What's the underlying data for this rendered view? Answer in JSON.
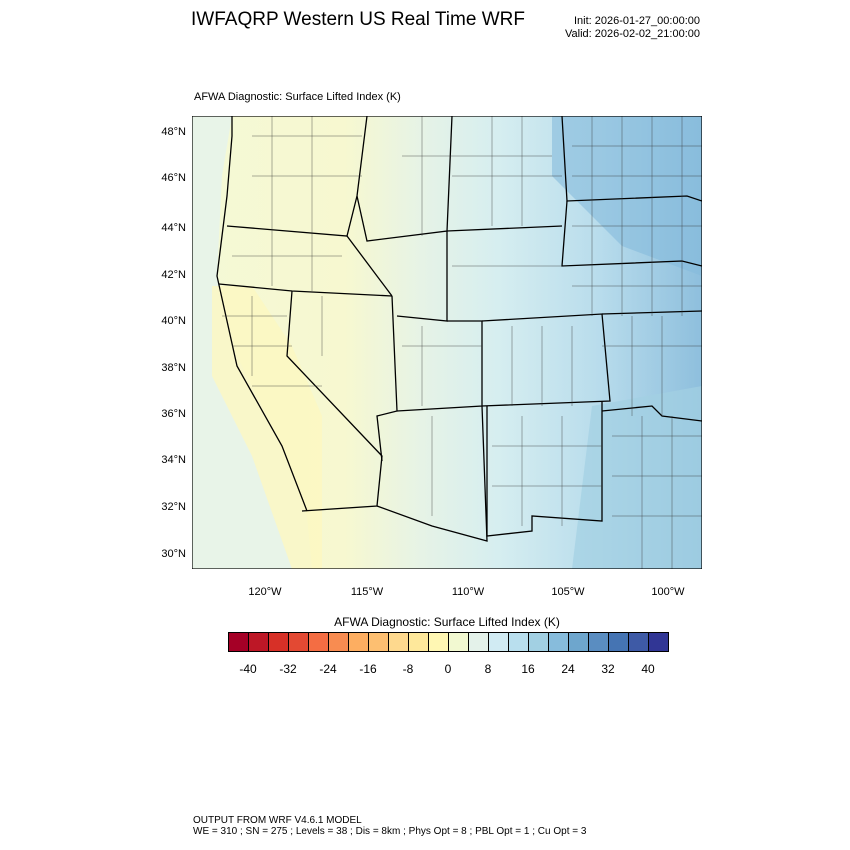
{
  "header": {
    "title": "IWFAQRP Western US Real Time WRF",
    "init": "Init: 2026-01-27_00:00:00",
    "valid": "Valid: 2026-02-02_21:00:00"
  },
  "map": {
    "subtitle": "AFWA Diagnostic: Surface Lifted Index   (K)",
    "lat_labels": [
      "48°N",
      "46°N",
      "44°N",
      "42°N",
      "40°N",
      "38°N",
      "36°N",
      "34°N",
      "32°N",
      "30°N"
    ],
    "lon_labels": [
      "120°W",
      "115°W",
      "110°W",
      "105°W",
      "100°W"
    ],
    "field_summary": {
      "west": "0 to 4 (pale yellow)",
      "central": "4 to 12 (pale green-blue)",
      "east": "12 to 28 (light to medium blue)"
    }
  },
  "colorbar": {
    "title": "AFWA Diagnostic: Surface Lifted Index  (K)",
    "labels": [
      "-40",
      "-32",
      "-24",
      "-16",
      "-8",
      "0",
      "8",
      "16",
      "24",
      "32",
      "40"
    ],
    "levels": [
      -40,
      -36,
      -32,
      -28,
      -24,
      -20,
      -16,
      -12,
      -8,
      -4,
      0,
      4,
      8,
      12,
      16,
      20,
      24,
      28,
      32,
      36,
      40
    ],
    "colors": [
      "#a50026",
      "#bd1726",
      "#d73027",
      "#e34933",
      "#f46d43",
      "#f88c51",
      "#fdae61",
      "#fdbf71",
      "#fed98e",
      "#fee89b",
      "#fff7b3",
      "#f2f9d1",
      "#e4f2ea",
      "#d1ebf3",
      "#b9dfee",
      "#a2d0e3",
      "#87bcdc",
      "#6ea6cd",
      "#5a8dc1",
      "#4574b3",
      "#3e5aa6",
      "#313695"
    ]
  },
  "footer": {
    "line1": "OUTPUT FROM WRF V4.6.1 MODEL",
    "line2": "WE = 310 ; SN = 275 ; Levels = 38 ; Dis = 8km ; Phys Opt = 8 ; PBL Opt = 1 ; Cu Opt = 3"
  }
}
